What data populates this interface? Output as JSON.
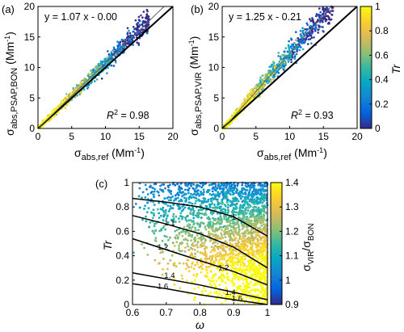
{
  "chart_data": [
    {
      "panel": "(a)",
      "type": "scatter",
      "xlabel_main": "σ",
      "xlabel_sub": "abs,ref",
      "xlabel_unit": " (Mm",
      "xlabel_exp": "-1",
      "xlabel_close": ")",
      "ylabel_main": "σ",
      "ylabel_sub": "abs,PSAP,BON",
      "ylabel_unit": " (Mm",
      "ylabel_exp": "-1",
      "ylabel_close": ")",
      "xlim": [
        0,
        20
      ],
      "ylim": [
        0,
        20
      ],
      "xticks": [
        "0",
        "5",
        "10",
        "15",
        "20"
      ],
      "yticks": [
        "0",
        "5",
        "10",
        "15",
        "20"
      ],
      "fit_equation": "y = 1.07 x -  0.00",
      "r2_label": "R",
      "r2_exp": "2",
      "r2_value": " = 0.98",
      "fit": {
        "slope": 1.07,
        "intercept": 0.0
      },
      "one_to_one": true,
      "color_variable": "Tr",
      "points": {
        "x_range": [
          0,
          16
        ],
        "y_relation": "approximately y = 1.07x",
        "tr_trend": "Tr high at small x, decreasing toward 0 at large x"
      }
    },
    {
      "panel": "(b)",
      "type": "scatter",
      "xlabel_main": "σ",
      "xlabel_sub": "abs,ref",
      "xlabel_unit": " (Mm",
      "xlabel_exp": "-1",
      "xlabel_close": ")",
      "ylabel_main": "σ",
      "ylabel_sub": "abs,PSAP,VIR",
      "ylabel_unit": " (Mm",
      "ylabel_exp": "-1",
      "ylabel_close": ")",
      "xlim": [
        0,
        20
      ],
      "ylim": [
        0,
        20
      ],
      "xticks": [
        "0",
        "5",
        "10",
        "15",
        "20"
      ],
      "yticks": [
        "0",
        "5",
        "10",
        "15",
        "20"
      ],
      "fit_equation": "y = 1.25 x - 0.21",
      "r2_label": "R",
      "r2_exp": "2",
      "r2_value": " = 0.93",
      "fit": {
        "slope": 1.25,
        "intercept": -0.21
      },
      "one_to_one": true,
      "colorbar": {
        "label": "Tr",
        "range": [
          0,
          1
        ],
        "ticks": [
          "0",
          "0.2",
          "0.4",
          "0.6",
          "0.8",
          "1"
        ]
      }
    },
    {
      "panel": "(c)",
      "type": "scatter",
      "xlabel": "ω",
      "ylabel": "Tr",
      "xlim": [
        0.6,
        1.0
      ],
      "ylim": [
        0,
        1
      ],
      "xticks": [
        "0.6",
        "0.7",
        "0.8",
        "0.9",
        "1"
      ],
      "yticks": [
        "0",
        "0.2",
        "0.4",
        "0.6",
        "0.8",
        "1"
      ],
      "colorbar": {
        "label_main": "σ",
        "label_sub1": "VIR",
        "label_slash": "/σ",
        "label_sub2": "BON",
        "range": [
          0.9,
          1.4
        ],
        "ticks": [
          "0.9",
          "1",
          "1.1",
          "1.2",
          "1.3",
          "1.4"
        ]
      },
      "contour_labels": [
        "1",
        "1.1",
        "1.2",
        "1.2",
        "1.4",
        "1.6",
        "1.4",
        "1.6"
      ],
      "contours": [
        {
          "level": 1.0,
          "x": [
            0.6,
            0.7,
            0.8,
            0.9,
            1.0
          ],
          "y": [
            0.87,
            0.84,
            0.8,
            0.72,
            0.56
          ]
        },
        {
          "level": 1.1,
          "x": [
            0.6,
            0.7,
            0.8,
            0.9,
            1.0
          ],
          "y": [
            0.73,
            0.66,
            0.58,
            0.47,
            0.3
          ]
        },
        {
          "level": 1.2,
          "x": [
            0.6,
            0.7,
            0.8,
            0.9,
            1.0
          ],
          "y": [
            0.54,
            0.45,
            0.36,
            0.27,
            0.16
          ]
        },
        {
          "level": 1.4,
          "x": [
            0.6,
            0.7,
            0.8,
            0.9,
            1.0
          ],
          "y": [
            0.26,
            0.21,
            0.16,
            0.1,
            0.04
          ]
        },
        {
          "level": 1.6,
          "x": [
            0.6,
            0.7,
            0.8,
            0.9,
            1.0
          ],
          "y": [
            0.17,
            0.13,
            0.08,
            0.04,
            0.0
          ]
        }
      ]
    }
  ],
  "colors": {
    "parula": [
      "#352a87",
      "#0363e1",
      "#1485d4",
      "#06a7c6",
      "#38b99e",
      "#92bf73",
      "#d9ba56",
      "#fcce2e",
      "#f9fb0e"
    ]
  }
}
